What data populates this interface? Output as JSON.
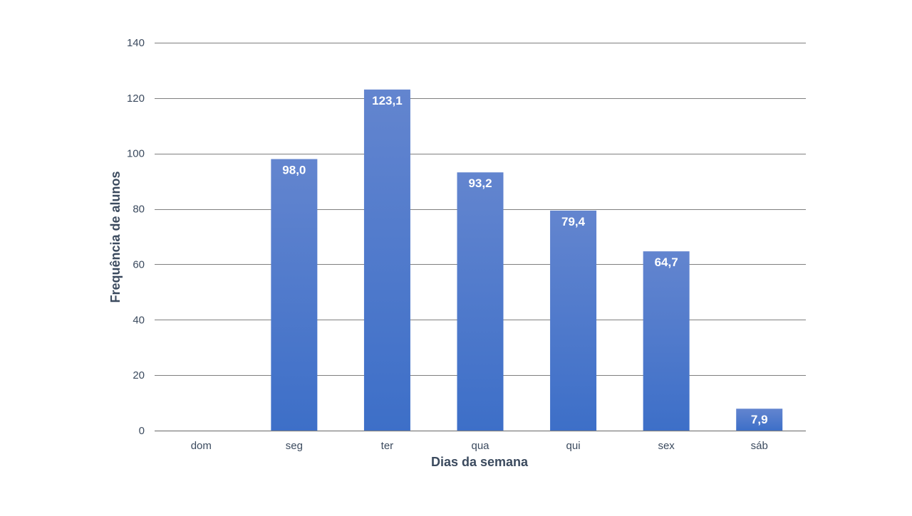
{
  "chart_data": {
    "type": "bar",
    "categories": [
      "dom",
      "seg",
      "ter",
      "qua",
      "qui",
      "sex",
      "sáb"
    ],
    "values": [
      0,
      98.0,
      123.1,
      93.2,
      79.4,
      64.7,
      7.9
    ],
    "data_labels": [
      "",
      "98,0",
      "123,1",
      "93,2",
      "79,4",
      "64,7",
      "7,9"
    ],
    "xlabel": "Dias da semana",
    "ylabel": "Frequência de alunos",
    "ylim": [
      0,
      140
    ],
    "yticks": [
      0,
      20,
      40,
      60,
      80,
      100,
      120,
      140
    ],
    "ytick_labels": [
      "0",
      "20",
      "40",
      "60",
      "80",
      "100",
      "120",
      "140"
    ],
    "grid": true,
    "legend": "none",
    "colors": {
      "bar_top": "#6385cf",
      "bar_bottom": "#3d6fc8",
      "grid": "#7f7f7f",
      "text": "#3b4a5e"
    }
  }
}
